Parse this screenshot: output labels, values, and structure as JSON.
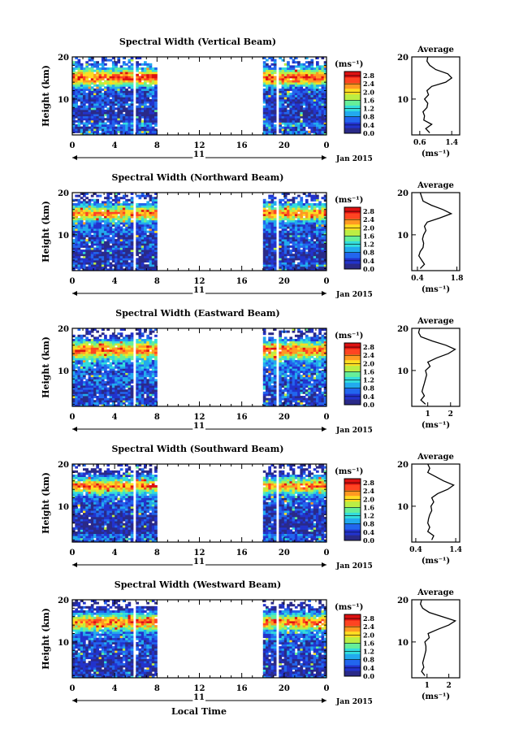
{
  "figure": {
    "x_caption": "Local Time",
    "date_label": "Jan 2015",
    "day_label": "11",
    "ylabel": "Height (km)",
    "unit_label": "(ms⁻¹)",
    "avg_title": "Average",
    "avg_unit": "(ms⁻¹)",
    "colorbar_ticks": [
      "2.8",
      "2.4",
      "2.0",
      "1.6",
      "1.2",
      "0.8",
      "0.4",
      "0.0"
    ],
    "colorbar_range": [
      0.0,
      3.0
    ],
    "colormap": [
      "#2a2a88",
      "#2233cc",
      "#2266ee",
      "#22aaee",
      "#33dddd",
      "#66ee99",
      "#bbee44",
      "#ffdd22",
      "#ff9922",
      "#ff4422",
      "#dd1111"
    ]
  },
  "chart_data": [
    {
      "type": "heatmap",
      "title": "Spectral Width (Vertical Beam)",
      "x_ticks": [
        "0",
        "4",
        "8",
        "12",
        "16",
        "20",
        "0"
      ],
      "xlim": [
        0,
        24
      ],
      "y_ticks": [
        "20",
        "10"
      ],
      "ylim": [
        1.5,
        20
      ],
      "data_gaps_hours": [
        [
          8,
          18
        ]
      ],
      "avg_profile": {
        "x_ticks": [
          "0.6",
          "1.4"
        ],
        "xlim": [
          0.4,
          1.6
        ],
        "height_km": [
          2,
          3,
          4,
          5,
          6,
          7,
          8,
          9,
          10,
          11,
          12,
          13,
          14,
          15,
          16,
          17,
          18,
          19,
          20
        ],
        "value": [
          0.85,
          0.75,
          0.9,
          0.7,
          0.72,
          0.68,
          0.78,
          0.8,
          0.72,
          0.82,
          0.78,
          0.9,
          1.25,
          1.4,
          1.3,
          1.0,
          0.85,
          0.78,
          0.8
        ]
      }
    },
    {
      "type": "heatmap",
      "title": "Spectral Width (Northward Beam)",
      "x_ticks": [
        "0",
        "4",
        "8",
        "12",
        "16",
        "20",
        "0"
      ],
      "xlim": [
        0,
        24
      ],
      "y_ticks": [
        "20",
        "10"
      ],
      "ylim": [
        1.5,
        20
      ],
      "data_gaps_hours": [
        [
          8,
          18
        ]
      ],
      "avg_profile": {
        "x_ticks": [
          "0.4",
          "1.8"
        ],
        "xlim": [
          0.2,
          1.9
        ],
        "height_km": [
          2,
          3,
          4,
          5,
          6,
          7,
          8,
          9,
          10,
          11,
          12,
          13,
          14,
          15,
          16,
          17,
          18,
          19,
          20
        ],
        "value": [
          0.5,
          0.65,
          0.55,
          0.45,
          0.5,
          0.6,
          0.62,
          0.58,
          0.62,
          0.7,
          0.65,
          0.75,
          1.2,
          1.6,
          1.3,
          0.9,
          0.6,
          0.55,
          0.5
        ]
      }
    },
    {
      "type": "heatmap",
      "title": "Spectral Width (Eastward Beam)",
      "x_ticks": [
        "0",
        "4",
        "8",
        "12",
        "16",
        "20",
        "0"
      ],
      "xlim": [
        0,
        24
      ],
      "y_ticks": [
        "20",
        "10"
      ],
      "ylim": [
        1.5,
        20
      ],
      "data_gaps_hours": [
        [
          8,
          18
        ]
      ],
      "avg_profile": {
        "x_ticks": [
          "1",
          "2"
        ],
        "xlim": [
          0.3,
          2.4
        ],
        "height_km": [
          2,
          3,
          4,
          5,
          6,
          7,
          8,
          9,
          10,
          11,
          12,
          13,
          14,
          15,
          16,
          17,
          18,
          19,
          20
        ],
        "value": [
          0.9,
          0.7,
          0.85,
          0.75,
          0.8,
          0.85,
          0.9,
          0.95,
          0.9,
          1.1,
          1.0,
          1.4,
          1.9,
          2.2,
          1.8,
          1.2,
          0.7,
          0.6,
          0.65
        ]
      }
    },
    {
      "type": "heatmap",
      "title": "Spectral Width (Southward Beam)",
      "x_ticks": [
        "0",
        "4",
        "8",
        "12",
        "16",
        "20",
        "0"
      ],
      "xlim": [
        0,
        24
      ],
      "y_ticks": [
        "20",
        "10"
      ],
      "ylim": [
        1.5,
        20
      ],
      "data_gaps_hours": [
        [
          8,
          18
        ]
      ],
      "avg_profile": {
        "x_ticks": [
          "0.4",
          "1.4"
        ],
        "xlim": [
          0.3,
          1.5
        ],
        "height_km": [
          2,
          3,
          4,
          5,
          6,
          7,
          8,
          9,
          10,
          11,
          12,
          13,
          14,
          15,
          16,
          17,
          18,
          19,
          20
        ],
        "value": [
          0.8,
          0.85,
          0.7,
          0.75,
          0.7,
          0.72,
          0.75,
          0.8,
          0.78,
          0.85,
          0.8,
          0.95,
          1.2,
          1.35,
          1.1,
          0.9,
          0.7,
          0.75,
          0.7
        ]
      }
    },
    {
      "type": "heatmap",
      "title": "Spectral Width (Westward Beam)",
      "x_ticks": [
        "0",
        "4",
        "8",
        "12",
        "16",
        "20",
        "0"
      ],
      "xlim": [
        0,
        24
      ],
      "y_ticks": [
        "20",
        "10"
      ],
      "ylim": [
        1.5,
        20
      ],
      "data_gaps_hours": [
        [
          8,
          18
        ]
      ],
      "avg_profile": {
        "x_ticks": [
          "1",
          "2"
        ],
        "xlim": [
          0.3,
          2.5
        ],
        "height_km": [
          2,
          3,
          4,
          5,
          6,
          7,
          8,
          9,
          10,
          11,
          12,
          13,
          14,
          15,
          16,
          17,
          18,
          19,
          20
        ],
        "value": [
          0.9,
          0.75,
          0.85,
          0.8,
          0.85,
          0.9,
          0.95,
          0.95,
          0.9,
          1.1,
          1.05,
          1.5,
          2.0,
          2.3,
          1.7,
          1.1,
          0.8,
          0.7,
          0.75
        ]
      }
    }
  ]
}
